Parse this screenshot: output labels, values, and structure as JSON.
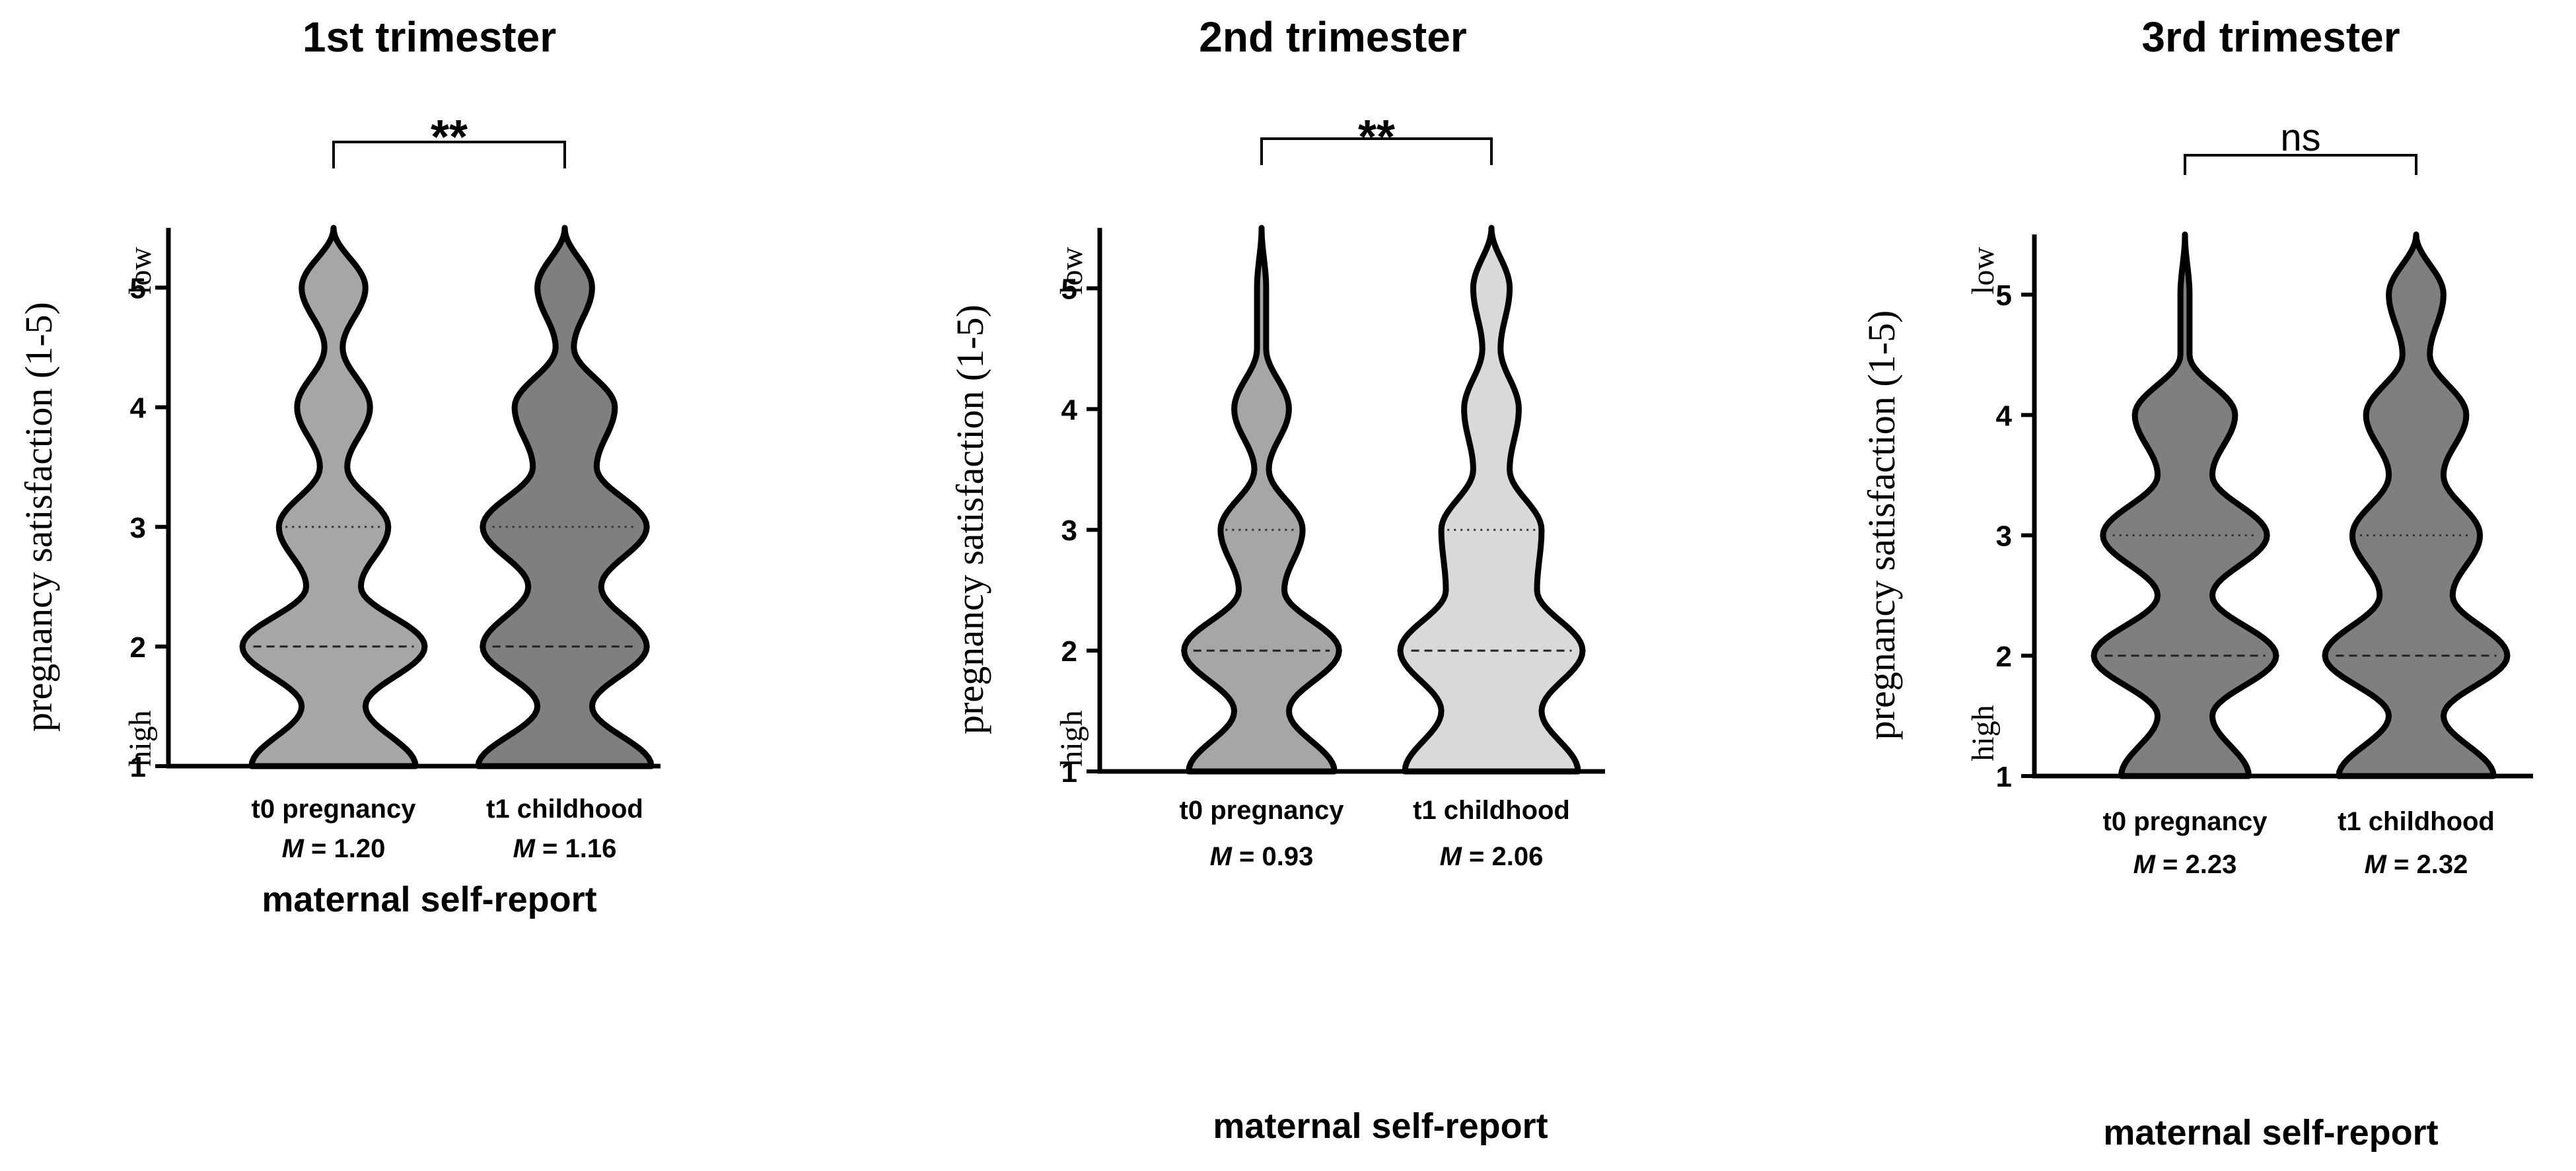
{
  "chart_data": [
    {
      "type": "violin",
      "title": "1st trimester",
      "ylabel": "pregnancy satisfaction (1-5)",
      "ylabel_top": "low",
      "ylabel_bottom": "high",
      "xlabel": "maternal self-report",
      "ylim": [
        1,
        5.5
      ],
      "yticks": [
        "1",
        "2",
        "3",
        "4",
        "5"
      ],
      "significance": "**",
      "categories": [
        "t0 pregnancy",
        "t1 childhood"
      ],
      "means": [
        "1.20",
        "1.16"
      ],
      "mean_prefix": "M",
      "mean_sep": " = ",
      "series": [
        {
          "fill": "#a6a6a6",
          "median": 2,
          "quartile": 3,
          "density": [
            [
              1.0,
              0.9
            ],
            [
              1.5,
              0.35
            ],
            [
              2.0,
              1.0
            ],
            [
              2.5,
              0.3
            ],
            [
              3.0,
              0.6
            ],
            [
              3.5,
              0.15
            ],
            [
              4.0,
              0.4
            ],
            [
              4.5,
              0.1
            ],
            [
              5.0,
              0.35
            ],
            [
              5.5,
              0.0
            ]
          ]
        },
        {
          "fill": "#7f7f7f",
          "median": 2,
          "quartile": 3,
          "density": [
            [
              1.0,
              0.95
            ],
            [
              1.5,
              0.3
            ],
            [
              2.0,
              0.9
            ],
            [
              2.5,
              0.4
            ],
            [
              3.0,
              0.9
            ],
            [
              3.5,
              0.35
            ],
            [
              4.0,
              0.55
            ],
            [
              4.5,
              0.1
            ],
            [
              5.0,
              0.3
            ],
            [
              5.5,
              0.0
            ]
          ]
        }
      ]
    },
    {
      "type": "violin",
      "title": "2nd trimester",
      "ylabel": "pregnancy satisfaction (1-5)",
      "ylabel_top": "low",
      "ylabel_bottom": "high",
      "xlabel": "maternal self-report",
      "ylim": [
        1,
        5.5
      ],
      "yticks": [
        "1",
        "2",
        "3",
        "4",
        "5"
      ],
      "significance": "**",
      "categories": [
        "t0 pregnancy",
        "t1 childhood"
      ],
      "means": [
        "0.93",
        "2.06"
      ],
      "mean_prefix": "M",
      "mean_sep": " = ",
      "series": [
        {
          "fill": "#a6a6a6",
          "median": 2,
          "quartile": 3,
          "density": [
            [
              1.0,
              0.8
            ],
            [
              1.5,
              0.3
            ],
            [
              2.0,
              0.85
            ],
            [
              2.5,
              0.25
            ],
            [
              3.0,
              0.45
            ],
            [
              3.5,
              0.08
            ],
            [
              4.0,
              0.3
            ],
            [
              4.5,
              0.05
            ],
            [
              5.0,
              0.05
            ],
            [
              5.5,
              0.0
            ]
          ]
        },
        {
          "fill": "#d9d9d9",
          "median": 2,
          "quartile": 3,
          "density": [
            [
              1.0,
              0.95
            ],
            [
              1.5,
              0.55
            ],
            [
              2.0,
              1.0
            ],
            [
              2.5,
              0.5
            ],
            [
              3.0,
              0.55
            ],
            [
              3.5,
              0.2
            ],
            [
              4.0,
              0.3
            ],
            [
              4.5,
              0.1
            ],
            [
              5.0,
              0.2
            ],
            [
              5.5,
              0.0
            ]
          ]
        }
      ]
    },
    {
      "type": "violin",
      "title": "3rd trimester",
      "ylabel": "pregnancy satisfaction (1-5)",
      "ylabel_top": "low",
      "ylabel_bottom": "high",
      "xlabel": "maternal self-report",
      "ylim": [
        1,
        5.5
      ],
      "yticks": [
        "1",
        "2",
        "3",
        "4",
        "5"
      ],
      "significance": "ns",
      "categories": [
        "t0 pregnancy",
        "t1 childhood"
      ],
      "means": [
        "2.23",
        "2.32"
      ],
      "mean_prefix": "M",
      "mean_sep": " = ",
      "series": [
        {
          "fill": "#7f7f7f",
          "median": 2,
          "quartile": 3,
          "density": [
            [
              1.0,
              0.7
            ],
            [
              1.5,
              0.3
            ],
            [
              2.0,
              1.0
            ],
            [
              2.5,
              0.3
            ],
            [
              3.0,
              0.9
            ],
            [
              3.5,
              0.3
            ],
            [
              4.0,
              0.55
            ],
            [
              4.5,
              0.05
            ],
            [
              5.0,
              0.05
            ],
            [
              5.5,
              0.0
            ]
          ]
        },
        {
          "fill": "#7f7f7f",
          "median": 2,
          "quartile": 3,
          "density": [
            [
              1.0,
              0.85
            ],
            [
              1.5,
              0.3
            ],
            [
              2.0,
              1.0
            ],
            [
              2.5,
              0.4
            ],
            [
              3.0,
              0.7
            ],
            [
              3.5,
              0.3
            ],
            [
              4.0,
              0.55
            ],
            [
              4.5,
              0.15
            ],
            [
              5.0,
              0.3
            ],
            [
              5.5,
              0.0
            ]
          ]
        }
      ]
    }
  ]
}
